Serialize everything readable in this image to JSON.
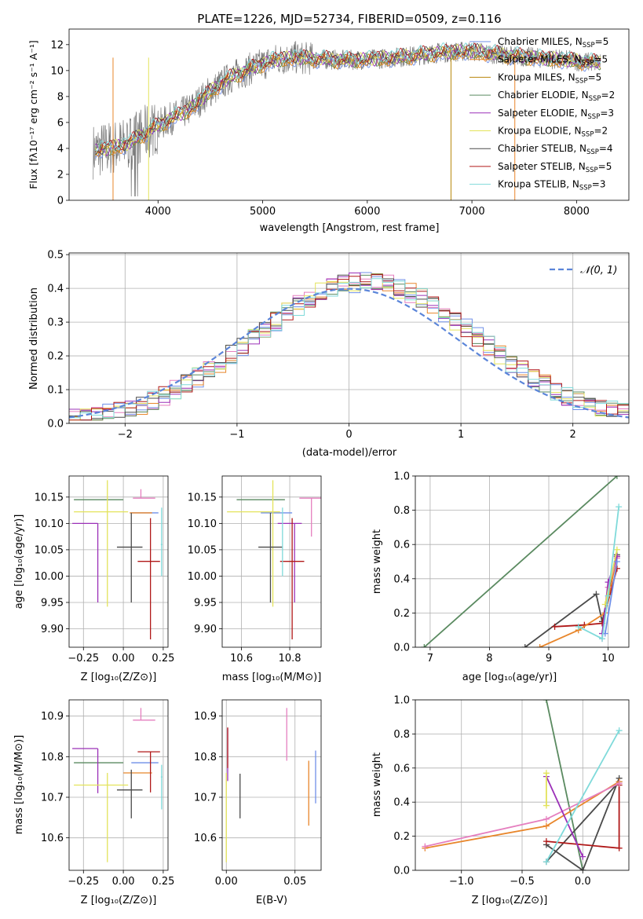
{
  "chart_data": [
    {
      "type": "line",
      "title": "PLATE=1226, MJD=52734, FIBERID=0509, z=0.116",
      "xlabel": "wavelength [Angstrom, rest frame]",
      "ylabel": "Flux [fλ10⁻¹⁷ erg cm⁻² s⁻¹ A⁻¹]",
      "xlim": [
        3150,
        8500
      ],
      "ylim": [
        0,
        13.2
      ],
      "xticks": [
        "4000",
        "5000",
        "6000",
        "7000",
        "8000"
      ],
      "yticks": [
        "0",
        "2",
        "4",
        "6",
        "8",
        "10",
        "12"
      ],
      "legend_position": "top-right",
      "legend": [
        {
          "name": "Chabrier MILES, N",
          "sub": "SSP",
          "suffix": "=5",
          "color": "#6f8fe8"
        },
        {
          "name": "Salpeter MILES, N",
          "sub": "SSP",
          "suffix": "=5",
          "color": "#e8862b"
        },
        {
          "name": "Kroupa MILES, N",
          "sub": "SSP",
          "suffix": "=5",
          "color": "#b8860b"
        },
        {
          "name": "Chabrier ELODIE, N",
          "sub": "SSP",
          "suffix": "=2",
          "color": "#5a8a60"
        },
        {
          "name": "Salpeter ELODIE, N",
          "sub": "SSP",
          "suffix": "=3",
          "color": "#9b30b8"
        },
        {
          "name": "Kroupa ELODIE, N",
          "sub": "SSP",
          "suffix": "=2",
          "color": "#e3e35a"
        },
        {
          "name": "Chabrier STELIB, N",
          "sub": "SSP",
          "suffix": "=4",
          "color": "#4a4a4a"
        },
        {
          "name": "Salpeter STELIB, N",
          "sub": "SSP",
          "suffix": "=5",
          "color": "#b01818"
        },
        {
          "name": "Kroupa STELIB, N",
          "sub": "SSP",
          "suffix": "=3",
          "color": "#7fdada"
        }
      ],
      "spectrum_trend": {
        "x": [
          3400,
          3700,
          3900,
          4100,
          4300,
          4500,
          4700,
          4900,
          5100,
          5300,
          5500,
          5800,
          6100,
          6400,
          6700,
          7000,
          7300,
          7600,
          7900,
          8200
        ],
        "y": [
          3.8,
          4.3,
          5.3,
          6.2,
          7.0,
          8.4,
          9.5,
          10.2,
          10.8,
          11.0,
          10.9,
          10.8,
          10.9,
          11.1,
          11.4,
          11.5,
          11.2,
          11.0,
          10.8,
          10.6
        ]
      }
    },
    {
      "type": "line",
      "title": "",
      "xlabel": "(data-model)/error",
      "ylabel": "Normed distribution",
      "xlim": [
        -2.5,
        2.5
      ],
      "ylim": [
        0,
        0.505
      ],
      "xticks": [
        "−2",
        "−1",
        "0",
        "1",
        "2"
      ],
      "yticks": [
        "0.0",
        "0.1",
        "0.2",
        "0.3",
        "0.4",
        "0.5"
      ],
      "legend_position": "top-right",
      "legend": [
        {
          "name": "𝒩(0, 1)",
          "color": "#5b85d9"
        }
      ],
      "histogram_bin_width": 0.1
    },
    {
      "type": "scatter",
      "xlabel": "Z [log₁₀(Z/Z⊙)]",
      "ylabel": "age  [log₁₀(age/yr)]",
      "xlim": [
        -0.34,
        0.28
      ],
      "ylim": [
        9.865,
        10.19
      ],
      "xticks": [
        "−0.25",
        "0.00",
        "0.25"
      ],
      "yticks": [
        "9.90",
        "9.95",
        "10.00",
        "10.05",
        "10.10",
        "10.15"
      ],
      "points": [
        {
          "color": "#6f8fe8",
          "x": 0.16,
          "xerr": [
            0.11,
            0.06
          ],
          "y": 10.12,
          "yerr": [
            0.0,
            0.0
          ]
        },
        {
          "color": "#e8862b",
          "x": 0.13,
          "xerr": [
            0.09,
            0.05
          ],
          "y": 10.12,
          "yerr": [
            0.0,
            0.0
          ]
        },
        {
          "color": "#e57fbf",
          "x": 0.11,
          "xerr": [
            0.05,
            0.09
          ],
          "y": 10.148,
          "yerr": [
            0.0,
            0.017
          ]
        },
        {
          "color": "#5a8a60",
          "x": -0.13,
          "xerr": [
            0.18,
            0.13
          ],
          "y": 10.145,
          "yerr": [
            0.0,
            0.0
          ]
        },
        {
          "color": "#9b30b8",
          "x": -0.16,
          "xerr": [
            0.16,
            0.0
          ],
          "y": 10.1,
          "yerr": [
            0.15,
            0.0
          ]
        },
        {
          "color": "#e3e35a",
          "x": -0.1,
          "xerr": [
            0.21,
            0.13
          ],
          "y": 10.122,
          "yerr": [
            0.18,
            0.06
          ]
        },
        {
          "color": "#4a4a4a",
          "x": 0.05,
          "xerr": [
            0.09,
            0.07
          ],
          "y": 10.055,
          "yerr": [
            0.105,
            0.065
          ]
        },
        {
          "color": "#b01818",
          "x": 0.17,
          "xerr": [
            0.08,
            0.06
          ],
          "y": 10.028,
          "yerr": [
            0.148,
            0.082
          ]
        },
        {
          "color": "#7fdada",
          "x": 0.24,
          "xerr": [
            0.005,
            0.005
          ],
          "y": 10.06,
          "yerr": [
            0.06,
            0.07
          ]
        }
      ]
    },
    {
      "type": "scatter",
      "xlabel": "mass [log₁₀(M/M⊙)]",
      "ylabel": "",
      "xlim": [
        10.52,
        10.93
      ],
      "ylim": [
        9.865,
        10.19
      ],
      "xticks": [
        "10.6",
        "10.8"
      ],
      "yticks": [
        "9.90",
        "9.95",
        "10.00",
        "10.05",
        "10.10",
        "10.15"
      ],
      "points": [
        {
          "color": "#6f8fe8",
          "x": 10.78,
          "xerr": [
            0.1,
            0.03
          ],
          "y": 10.12,
          "yerr": [
            0.0,
            0.0
          ]
        },
        {
          "color": "#e8862b",
          "x": 10.77,
          "xerr": [
            0.0,
            0.0
          ],
          "y": 10.12,
          "yerr": [
            0.0,
            0.0
          ]
        },
        {
          "color": "#e57fbf",
          "x": 10.89,
          "xerr": [
            0.05,
            0.04
          ],
          "y": 10.148,
          "yerr": [
            0.073,
            0.0
          ]
        },
        {
          "color": "#5a8a60",
          "x": 10.78,
          "xerr": [
            0.2,
            0.0
          ],
          "y": 10.145,
          "yerr": [
            0.0,
            0.0
          ]
        },
        {
          "color": "#9b30b8",
          "x": 10.82,
          "xerr": [
            0.07,
            0.03
          ],
          "y": 10.1,
          "yerr": [
            0.15,
            0.0
          ]
        },
        {
          "color": "#e3e35a",
          "x": 10.73,
          "xerr": [
            0.19,
            0.03
          ],
          "y": 10.122,
          "yerr": [
            0.18,
            0.06
          ]
        },
        {
          "color": "#4a4a4a",
          "x": 10.72,
          "xerr": [
            0.05,
            0.05
          ],
          "y": 10.055,
          "yerr": [
            0.105,
            0.065
          ]
        },
        {
          "color": "#b01818",
          "x": 10.81,
          "xerr": [
            0.05,
            0.05
          ],
          "y": 10.028,
          "yerr": [
            0.148,
            0.082
          ]
        },
        {
          "color": "#7fdada",
          "x": 10.77,
          "xerr": [
            0.0,
            0.0
          ],
          "y": 10.06,
          "yerr": [
            0.06,
            0.07
          ]
        }
      ]
    },
    {
      "type": "line",
      "xlabel": "age  [log₁₀(age/yr)]",
      "ylabel": "mass weight",
      "xlim": [
        6.75,
        10.35
      ],
      "ylim": [
        0,
        1.0
      ],
      "xticks": [
        "7",
        "8",
        "9",
        "10"
      ],
      "yticks": [
        "0.0",
        "0.2",
        "0.4",
        "0.6",
        "0.8",
        "1.0"
      ],
      "series": [
        {
          "color": "#5a8a60",
          "x": [
            6.9,
            10.15
          ],
          "y": [
            0.0,
            1.0
          ]
        },
        {
          "color": "#4a4a4a",
          "x": [
            8.6,
            9.8,
            9.9,
            10.15
          ],
          "y": [
            0.0,
            0.31,
            0.15,
            0.54
          ]
        },
        {
          "color": "#b01818",
          "x": [
            9.1,
            9.6,
            9.9,
            10.15
          ],
          "y": [
            0.12,
            0.13,
            0.14,
            0.46
          ]
        },
        {
          "color": "#e8862b",
          "x": [
            8.85,
            9.5,
            9.95,
            10.15
          ],
          "y": [
            0.0,
            0.1,
            0.2,
            0.53
          ]
        },
        {
          "color": "#e57fbf",
          "x": [
            9.9,
            10.0,
            10.15
          ],
          "y": [
            0.05,
            0.35,
            0.52
          ]
        },
        {
          "color": "#9b30b8",
          "x": [
            9.9,
            10.0,
            10.15
          ],
          "y": [
            0.08,
            0.38,
            0.53
          ]
        },
        {
          "color": "#e3e35a",
          "x": [
            9.95,
            10.15
          ],
          "y": [
            0.25,
            0.57
          ]
        },
        {
          "color": "#6f8fe8",
          "x": [
            9.95,
            10.15
          ],
          "y": [
            0.08,
            0.5
          ]
        },
        {
          "color": "#7fdada",
          "x": [
            9.5,
            9.9,
            10.0,
            10.18
          ],
          "y": [
            0.12,
            0.05,
            0.3,
            0.82
          ]
        }
      ]
    },
    {
      "type": "scatter",
      "xlabel": "Z [log₁₀(Z/Z⊙)]",
      "ylabel": "mass [log₁₀(M/M⊙)]",
      "xlim": [
        -0.34,
        0.28
      ],
      "ylim": [
        10.52,
        10.94
      ],
      "xticks": [
        "−0.25",
        "0.00",
        "0.25"
      ],
      "yticks": [
        "10.6",
        "10.7",
        "10.8",
        "10.9"
      ],
      "points": [
        {
          "color": "#6f8fe8",
          "x": 0.16,
          "xerr": [
            0.11,
            0.06
          ],
          "y": 10.785,
          "yerr": [
            0.0,
            0.0
          ]
        },
        {
          "color": "#e8862b",
          "x": 0.13,
          "xerr": [
            0.13,
            0.05
          ],
          "y": 10.76,
          "yerr": [
            0.0,
            0.0
          ]
        },
        {
          "color": "#e57fbf",
          "x": 0.11,
          "xerr": [
            0.05,
            0.09
          ],
          "y": 10.89,
          "yerr": [
            0.0,
            0.03
          ]
        },
        {
          "color": "#5a8a60",
          "x": -0.13,
          "xerr": [
            0.18,
            0.13
          ],
          "y": 10.785,
          "yerr": [
            0.0,
            0.0
          ]
        },
        {
          "color": "#9b30b8",
          "x": -0.16,
          "xerr": [
            0.16,
            0.0
          ],
          "y": 10.82,
          "yerr": [
            0.11,
            0.0
          ]
        },
        {
          "color": "#e3e35a",
          "x": -0.1,
          "xerr": [
            0.21,
            0.13
          ],
          "y": 10.73,
          "yerr": [
            0.19,
            0.03
          ]
        },
        {
          "color": "#4a4a4a",
          "x": 0.05,
          "xerr": [
            0.09,
            0.07
          ],
          "y": 10.718,
          "yerr": [
            0.07,
            0.05
          ]
        },
        {
          "color": "#b01818",
          "x": 0.17,
          "xerr": [
            0.08,
            0.06
          ],
          "y": 10.812,
          "yerr": [
            0.1,
            0.0
          ]
        },
        {
          "color": "#7fdada",
          "x": 0.24,
          "xerr": [
            0.005,
            0.005
          ],
          "y": 10.75,
          "yerr": [
            0.08,
            0.03
          ]
        }
      ]
    },
    {
      "type": "scatter",
      "xlabel": "E(B-V)",
      "ylabel": "",
      "xlim": [
        -0.003,
        0.069
      ],
      "ylim": [
        10.52,
        10.94
      ],
      "xticks": [
        "0.00",
        "0.05"
      ],
      "yticks": [
        "10.6",
        "10.7",
        "10.8",
        "10.9"
      ],
      "points": [
        {
          "color": "#6f8fe8",
          "x": 0.065,
          "yerr": [
            0.1,
            0.03
          ],
          "y": 10.785
        },
        {
          "color": "#e8862b",
          "x": 0.06,
          "yerr": [
            0.13,
            0.03
          ],
          "y": 10.76
        },
        {
          "color": "#e57fbf",
          "x": 0.044,
          "yerr": [
            0.1,
            0.03
          ],
          "y": 10.89
        },
        {
          "color": "#9b30b8",
          "x": 0.001,
          "yerr": [
            0.08,
            0.05
          ],
          "y": 10.82
        },
        {
          "color": "#e3e35a",
          "x": 0.0,
          "yerr": [
            0.19,
            0.03
          ],
          "y": 10.73
        },
        {
          "color": "#4a4a4a",
          "x": 0.01,
          "yerr": [
            0.07,
            0.04
          ],
          "y": 10.718
        },
        {
          "color": "#b01818",
          "x": 0.001,
          "yerr": [
            0.04,
            0.06
          ],
          "y": 10.812
        },
        {
          "color": "#5a8a60",
          "x": 0.0,
          "yerr": [
            0.0,
            0.0
          ],
          "y": 10.785
        },
        {
          "color": "#7fdada",
          "x": 0.0,
          "yerr": [
            0.0,
            0.0
          ],
          "y": 10.75
        }
      ]
    },
    {
      "type": "line",
      "xlabel": "Z [log₁₀(Z/Z⊙)]",
      "ylabel": "mass weight",
      "xlim": [
        -1.38,
        0.38
      ],
      "ylim": [
        0,
        1.0
      ],
      "xticks": [
        "−1.0",
        "−0.5",
        "0.0"
      ],
      "yticks": [
        "0.0",
        "0.2",
        "0.4",
        "0.6",
        "0.8",
        "1.0"
      ],
      "series": [
        {
          "color": "#5a8a60",
          "x": [
            -0.3,
            0.0
          ],
          "y": [
            1.0,
            0.0
          ]
        },
        {
          "color": "#4a4a4a",
          "x": [
            -0.3,
            0.0,
            0.3
          ],
          "y": [
            0.15,
            0.0,
            0.54
          ]
        },
        {
          "color": "#4a4a4a",
          "x": [
            -0.3,
            0.3
          ],
          "y": [
            0.05,
            0.52
          ]
        },
        {
          "color": "#b01818",
          "x": [
            -0.3,
            0.3,
            0.3
          ],
          "y": [
            0.17,
            0.13,
            0.5
          ]
        },
        {
          "color": "#e8862b",
          "x": [
            -1.3,
            -0.3,
            0.3
          ],
          "y": [
            0.13,
            0.26,
            0.52
          ]
        },
        {
          "color": "#e57fbf",
          "x": [
            -1.3,
            -0.3,
            0.3
          ],
          "y": [
            0.14,
            0.3,
            0.51
          ]
        },
        {
          "color": "#9b30b8",
          "x": [
            -0.3,
            0.0
          ],
          "y": [
            0.55,
            0.08
          ]
        },
        {
          "color": "#e3e35a",
          "x": [
            -0.3,
            -0.3
          ],
          "y": [
            0.57,
            0.38
          ]
        },
        {
          "color": "#7fdada",
          "x": [
            -0.3,
            0.3
          ],
          "y": [
            0.05,
            0.82
          ]
        }
      ]
    }
  ]
}
